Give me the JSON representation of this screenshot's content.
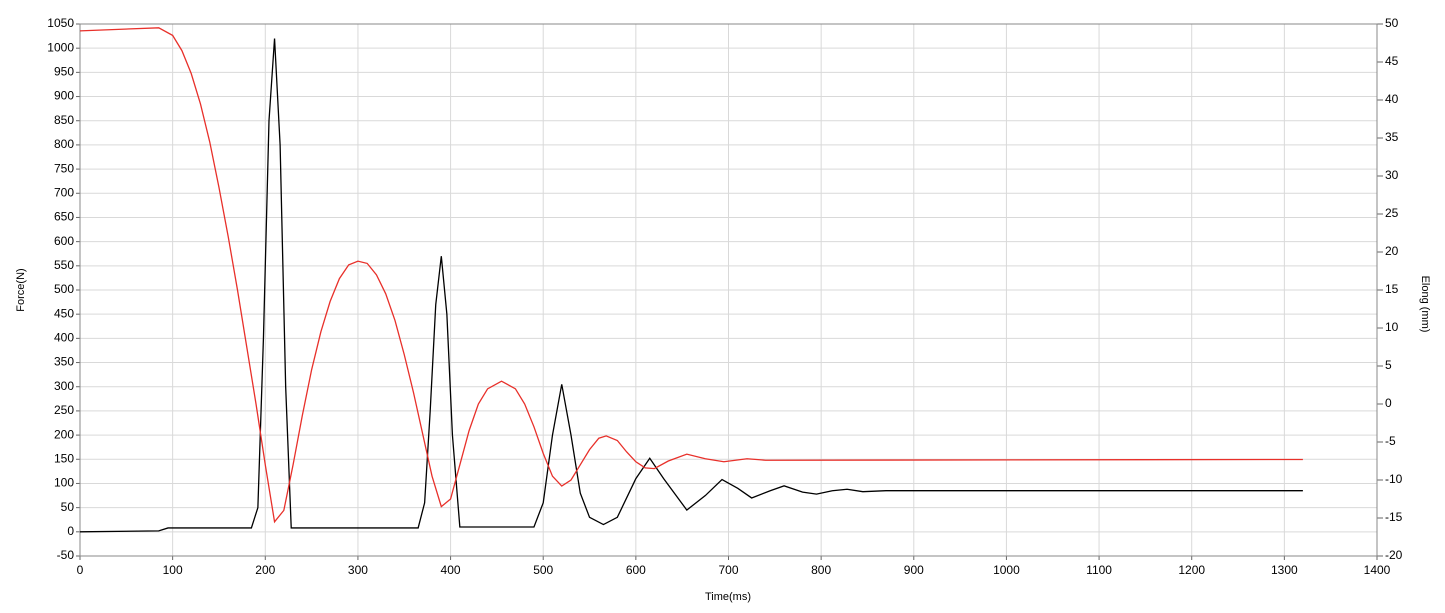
{
  "chart_data": {
    "type": "line",
    "x_label": "Time(ms)",
    "y_label": "Force(N)",
    "y2_label": "Elong (mm)",
    "xlim": [
      0,
      1400
    ],
    "xticks": [
      0,
      100,
      200,
      300,
      400,
      500,
      600,
      700,
      800,
      900,
      1000,
      1100,
      1200,
      1300,
      1400
    ],
    "ylim": [
      -50,
      1050
    ],
    "yticks": [
      -50,
      0,
      50,
      100,
      150,
      200,
      250,
      300,
      350,
      400,
      450,
      500,
      550,
      600,
      650,
      700,
      750,
      800,
      850,
      900,
      950,
      1000,
      1050
    ],
    "y2lim": [
      -20,
      50
    ],
    "y2ticks": [
      -20,
      -15,
      -10,
      -5,
      0,
      5,
      10,
      15,
      20,
      25,
      30,
      35,
      40,
      45,
      50
    ],
    "grid": true,
    "series": [
      {
        "color": "#000000",
        "x": [
          0,
          85,
          95,
          185,
          192,
          198,
          204,
          210,
          216,
          222,
          228,
          365,
          372,
          378,
          384,
          390,
          396,
          402,
          410,
          490,
          500,
          510,
          520,
          530,
          540,
          550,
          565,
          580,
          600,
          615,
          630,
          655,
          675,
          693,
          710,
          725,
          745,
          760,
          780,
          795,
          812,
          828,
          845,
          870,
          1320
        ],
        "values": [
          0,
          2,
          8,
          8,
          50,
          400,
          850,
          1020,
          800,
          300,
          8,
          8,
          60,
          250,
          470,
          570,
          450,
          200,
          10,
          10,
          60,
          200,
          305,
          200,
          80,
          30,
          15,
          30,
          110,
          152,
          110,
          45,
          75,
          108,
          90,
          70,
          85,
          95,
          82,
          78,
          85,
          88,
          83,
          85,
          85
        ]
      },
      {
        "color": "#e8302a",
        "axis": "y2",
        "x": [
          0,
          85,
          100,
          110,
          120,
          130,
          140,
          150,
          160,
          170,
          180,
          190,
          200,
          210,
          220,
          230,
          240,
          250,
          260,
          270,
          280,
          290,
          300,
          310,
          320,
          330,
          340,
          350,
          360,
          370,
          380,
          390,
          400,
          410,
          420,
          430,
          440,
          455,
          470,
          480,
          490,
          500,
          510,
          520,
          530,
          540,
          550,
          560,
          568,
          580,
          590,
          600,
          610,
          620,
          635,
          655,
          675,
          695,
          720,
          740,
          1320
        ],
        "values": [
          49.1,
          49.5,
          48.5,
          46.5,
          43.5,
          39.5,
          34.5,
          28.5,
          22,
          15,
          7.5,
          0,
          -8,
          -15.5,
          -14,
          -8,
          -1.5,
          4.5,
          9.5,
          13.5,
          16.5,
          18.3,
          18.8,
          18.5,
          17,
          14.5,
          11,
          6.5,
          1.5,
          -4,
          -9.5,
          -13.5,
          -12.5,
          -8,
          -3.5,
          0,
          2,
          3,
          2,
          0,
          -3,
          -6.5,
          -9.5,
          -10.8,
          -10,
          -8,
          -6,
          -4.5,
          -4.2,
          -4.8,
          -6.3,
          -7.6,
          -8.4,
          -8.5,
          -7.5,
          -6.6,
          -7.2,
          -7.6,
          -7.2,
          -7.4,
          -7.3
        ]
      }
    ]
  }
}
